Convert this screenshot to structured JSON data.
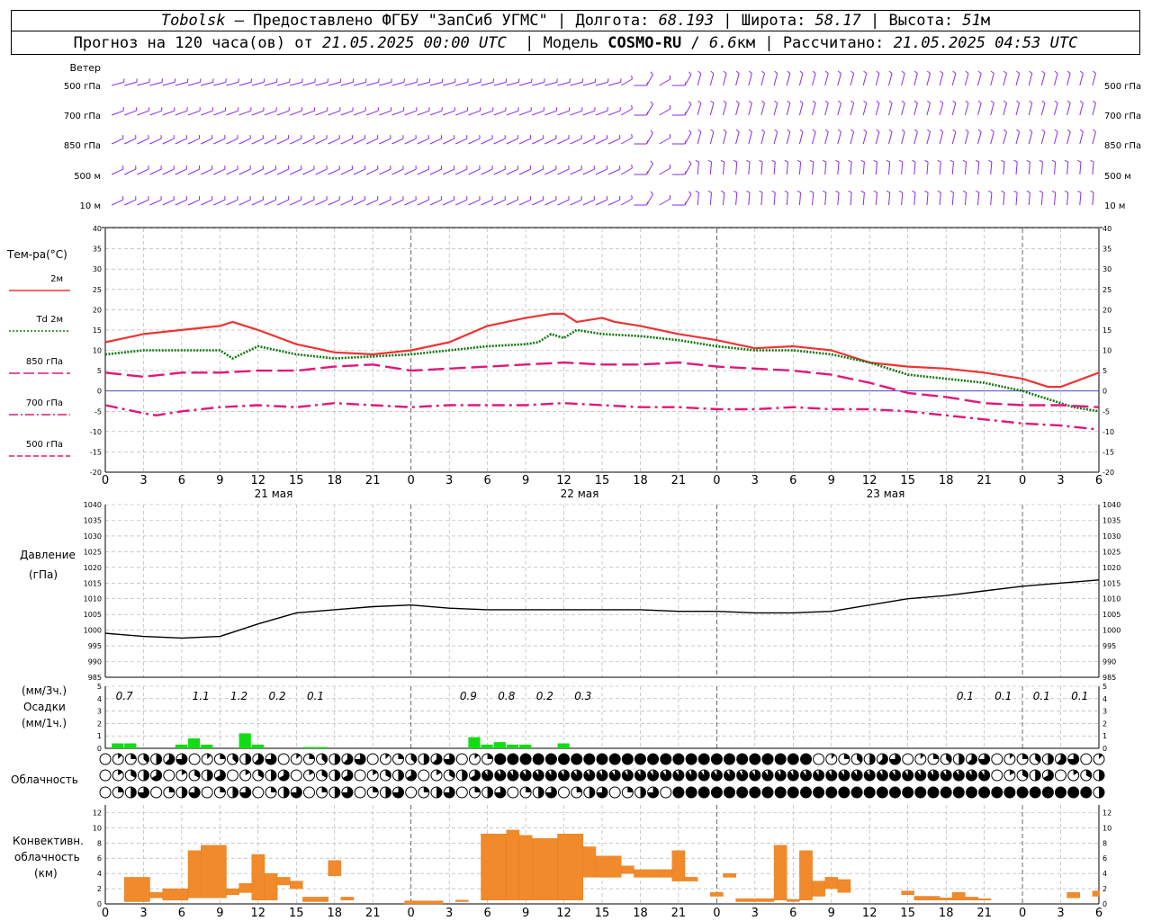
{
  "header": {
    "station": "Tobolsk",
    "dash": " — ",
    "provider": "Предоставлено ФГБУ \"ЗапСиб УГМС\"",
    "sep": " | ",
    "lon_label": "Долгота: ",
    "lon_value": "68.193",
    "lat_label": "Широта: ",
    "lat_value": "58.17",
    "alt_label": "Высота: ",
    "alt_value": "51",
    "alt_unit": "м"
  },
  "subheader": {
    "forecast_label": "Прогноз на 120 часа(ов) от ",
    "forecast_start": "21.05.2025 00:00 UTC",
    "model_label": "  | Модель ",
    "model_name": "COSMO-RU",
    "model_sep": " / ",
    "model_res": "6.6",
    "model_res_unit": "км",
    "calc_label": " | Рассчитано: ",
    "calc_time": "21.05.2025 04:53 UTC"
  },
  "panels": {
    "wind": {
      "title": "Ветер",
      "levels": [
        "500 гПа",
        "700 гПа",
        "850 гПа",
        "500 м",
        "10 м"
      ],
      "barb_color": "#8a2be2"
    },
    "temperature": {
      "title": "Тем-ра(°C)",
      "legend": [
        {
          "label": "2м",
          "color": "#ee3333",
          "style": "solid"
        },
        {
          "label": "Td 2м",
          "color": "#117711",
          "style": "dotted"
        },
        {
          "label": "850 гПа",
          "color": "#e0187a",
          "style": "dashed"
        },
        {
          "label": "700 гПа",
          "color": "#e0187a",
          "style": "dashdot"
        },
        {
          "label": "500 гПа",
          "color": "#e0187a",
          "style": "dashed"
        }
      ],
      "y_ticks": [
        "40",
        "35",
        "30",
        "25",
        "20",
        "15",
        "10",
        "5",
        "0",
        "-5",
        "-10",
        "-15",
        "-20"
      ]
    },
    "pressure": {
      "title_1": "Давление",
      "title_2": "(гПа)",
      "y_ticks": [
        "1040",
        "1035",
        "1030",
        "1025",
        "1020",
        "1015",
        "1010",
        "1005",
        "1000",
        "995",
        "990",
        "985"
      ]
    },
    "precip": {
      "title_1": "(мм/3ч.)",
      "title_2": "Осадки",
      "title_3": "(мм/1ч.)",
      "y_ticks": [
        "5",
        "4",
        "3",
        "2",
        "1",
        "0"
      ],
      "y_ticks_lower": [
        "4",
        "3",
        "2",
        "1",
        "0"
      ],
      "labels": [
        "0.7",
        "1.1",
        "1.2",
        "0.2",
        "0.1",
        "0.9",
        "0.8",
        "0.2",
        "0.3",
        "0.1",
        "0.1",
        "0.1",
        "0.1"
      ]
    },
    "cloud": {
      "title": "Облачность"
    },
    "convective": {
      "title_1": "Конвективн.",
      "title_2": "облачность",
      "title_3": "(км)",
      "y_ticks": [
        "12",
        "10",
        "8",
        "6",
        "4",
        "2",
        "0"
      ]
    }
  },
  "x_axis": {
    "hour_ticks": [
      "0",
      "3",
      "6",
      "9",
      "12",
      "15",
      "18",
      "21",
      "0",
      "3",
      "6",
      "9",
      "12",
      "15",
      "18",
      "21",
      "0",
      "3",
      "6",
      "9",
      "12",
      "15",
      "18",
      "21",
      "0",
      "3",
      "6"
    ],
    "dates": [
      "21 мая",
      "22 мая",
      "23 мая"
    ]
  },
  "chart_data": [
    {
      "type": "line",
      "title": "Тем-ра(°C)",
      "x_unit": "hours from 21.05.2025 00:00 UTC",
      "ylim": [
        -20,
        40
      ],
      "grid": true,
      "series": [
        {
          "name": "2м",
          "x": [
            0,
            3,
            6,
            9,
            10,
            12,
            15,
            18,
            21,
            24,
            27,
            30,
            33,
            35,
            36,
            37,
            39,
            40,
            42,
            45,
            48,
            51,
            54,
            57,
            60,
            63,
            66,
            69,
            72,
            74,
            75,
            78
          ],
          "values": [
            12,
            14,
            15,
            16,
            17,
            15,
            11.5,
            9.5,
            9,
            10,
            12,
            16,
            18,
            19,
            19,
            17,
            18,
            17,
            16,
            14,
            12.5,
            10.5,
            11,
            10,
            7,
            6,
            5.5,
            4.5,
            3,
            1,
            1,
            4.5
          ]
        },
        {
          "name": "Td 2м",
          "x": [
            0,
            3,
            6,
            9,
            10,
            12,
            15,
            18,
            21,
            24,
            27,
            30,
            33,
            34,
            35,
            36,
            37,
            39,
            42,
            45,
            48,
            51,
            54,
            57,
            60,
            63,
            66,
            69,
            72,
            74,
            76,
            78
          ],
          "values": [
            9,
            10,
            10,
            10,
            8,
            11,
            9,
            8,
            8.5,
            9,
            10,
            11,
            11.5,
            12,
            14,
            13,
            15,
            14,
            13.5,
            12.5,
            11,
            10,
            10,
            9,
            7,
            4,
            3,
            2,
            0,
            -2,
            -4,
            -5
          ]
        },
        {
          "name": "850 гПа",
          "x": [
            0,
            3,
            6,
            9,
            12,
            15,
            18,
            21,
            24,
            27,
            30,
            33,
            36,
            39,
            42,
            45,
            48,
            51,
            54,
            57,
            60,
            63,
            66,
            69,
            72,
            75,
            78
          ],
          "values": [
            4.5,
            3.5,
            4.5,
            4.5,
            5,
            5,
            6,
            6.5,
            5,
            5.5,
            6,
            6.5,
            7,
            6.5,
            6.5,
            7,
            6,
            5.5,
            5,
            4,
            2,
            -0.5,
            -1.5,
            -3,
            -3.5,
            -3.5,
            -4
          ]
        },
        {
          "name": "700 гПа",
          "x": [
            0,
            3,
            4,
            6,
            9,
            12,
            15,
            18,
            21,
            24,
            27,
            30,
            33,
            36,
            39,
            42,
            45,
            48,
            51,
            54,
            57,
            60,
            63,
            66,
            69,
            72,
            75,
            78
          ],
          "values": [
            -3.5,
            -5.5,
            -6,
            -5,
            -4,
            -3.5,
            -4,
            -3,
            -3.5,
            -4,
            -3.5,
            -3.5,
            -3.5,
            -3,
            -3.5,
            -4,
            -4,
            -4.5,
            -4.5,
            -4,
            -4.5,
            -4.5,
            -5,
            -6,
            -7,
            -8,
            -8.5,
            -9.5
          ]
        }
      ]
    },
    {
      "type": "line",
      "title": "Давление (гПа)",
      "x_unit": "hours from 21.05.2025 00:00 UTC",
      "ylim": [
        985,
        1040
      ],
      "grid": true,
      "series": [
        {
          "name": "Давление",
          "x": [
            0,
            3,
            6,
            9,
            12,
            15,
            18,
            21,
            24,
            27,
            30,
            33,
            36,
            39,
            42,
            45,
            48,
            51,
            54,
            57,
            60,
            63,
            66,
            69,
            72,
            75,
            78
          ],
          "values": [
            999,
            998,
            997.5,
            998,
            1002,
            1005.5,
            1006.5,
            1007.5,
            1008,
            1007,
            1006.5,
            1006.5,
            1006.5,
            1006.5,
            1006.5,
            1006,
            1006,
            1005.5,
            1005.5,
            1006,
            1008,
            1010,
            1011,
            1012.5,
            1014,
            1015,
            1016
          ]
        }
      ]
    },
    {
      "type": "bar",
      "title": "Осадки",
      "x_unit": "hours from 21.05.2025 00:00 UTC",
      "ylim": [
        0,
        5
      ],
      "series": [
        {
          "name": "мм/1ч.",
          "x": [
            1,
            2,
            6,
            7,
            8,
            11,
            12,
            16,
            17,
            29,
            30,
            31,
            32,
            33,
            36
          ],
          "values": [
            0.4,
            0.4,
            0.3,
            0.8,
            0.3,
            1.2,
            0.3,
            0.1,
            0.1,
            0.9,
            0.3,
            0.5,
            0.3,
            0.3,
            0.4
          ]
        }
      ],
      "totals_3h": [
        {
          "x": 1.5,
          "value": "0.7"
        },
        {
          "x": 7.5,
          "value": "1.1"
        },
        {
          "x": 10.5,
          "value": "1.2"
        },
        {
          "x": 13.5,
          "value": "0.2"
        },
        {
          "x": 16.5,
          "value": "0.1"
        },
        {
          "x": 28.5,
          "value": "0.9"
        },
        {
          "x": 31.5,
          "value": "0.8"
        },
        {
          "x": 34.5,
          "value": "0.2"
        },
        {
          "x": 37.5,
          "value": "0.3"
        },
        {
          "x": 67.5,
          "value": "0.1"
        },
        {
          "x": 70.5,
          "value": "0.1"
        },
        {
          "x": 73.5,
          "value": "0.1"
        },
        {
          "x": 76.5,
          "value": "0.1"
        }
      ]
    },
    {
      "type": "bar",
      "title": "Конвективн. облачность (км)",
      "x_unit": "hours from 21.05.2025 00:00 UTC",
      "ylim": [
        0,
        13
      ],
      "bars": [
        {
          "x0": 1.5,
          "x1": 3.5,
          "base": 0.3,
          "top": 3.5
        },
        {
          "x0": 3.5,
          "x1": 4.5,
          "base": 0.8,
          "top": 1.5
        },
        {
          "x0": 4.5,
          "x1": 6.5,
          "base": 0.5,
          "top": 2
        },
        {
          "x0": 6.5,
          "x1": 7.5,
          "base": 0.8,
          "top": 7
        },
        {
          "x0": 7.5,
          "x1": 9.5,
          "base": 0.8,
          "top": 7.7
        },
        {
          "x0": 9.5,
          "x1": 10.5,
          "base": 1.2,
          "top": 2
        },
        {
          "x0": 10.5,
          "x1": 11.5,
          "base": 1.5,
          "top": 2.7
        },
        {
          "x0": 11.5,
          "x1": 12.5,
          "base": 0.5,
          "top": 6.5
        },
        {
          "x0": 12.5,
          "x1": 13.5,
          "base": 0.5,
          "top": 4
        },
        {
          "x0": 13.5,
          "x1": 14.5,
          "base": 2.5,
          "top": 3.5
        },
        {
          "x0": 14.5,
          "x1": 15.5,
          "base": 2,
          "top": 3
        },
        {
          "x0": 15.5,
          "x1": 17.5,
          "base": 0.3,
          "top": 0.9
        },
        {
          "x0": 17.5,
          "x1": 18.5,
          "base": 3.7,
          "top": 5.7
        },
        {
          "x0": 18.5,
          "x1": 19.5,
          "base": 0.5,
          "top": 0.9
        },
        {
          "x0": 23.5,
          "x1": 26.5,
          "base": 0,
          "top": 0.4
        },
        {
          "x0": 27.5,
          "x1": 28.5,
          "base": 0.3,
          "top": 0.5
        },
        {
          "x0": 29.5,
          "x1": 31.5,
          "base": 0.5,
          "top": 9.2
        },
        {
          "x0": 31.5,
          "x1": 32.5,
          "base": 0.5,
          "top": 9.7
        },
        {
          "x0": 32.5,
          "x1": 33.5,
          "base": 0.5,
          "top": 9
        },
        {
          "x0": 33.5,
          "x1": 35.5,
          "base": 0.5,
          "top": 8.6
        },
        {
          "x0": 35.5,
          "x1": 37.5,
          "base": 0.5,
          "top": 9.2
        },
        {
          "x0": 37.5,
          "x1": 38.5,
          "base": 3.5,
          "top": 7.5
        },
        {
          "x0": 38.5,
          "x1": 40.5,
          "base": 3.5,
          "top": 6.3
        },
        {
          "x0": 40.5,
          "x1": 41.5,
          "base": 4,
          "top": 5
        },
        {
          "x0": 41.5,
          "x1": 43.5,
          "base": 3.5,
          "top": 4.5
        },
        {
          "x0": 43.5,
          "x1": 44.5,
          "base": 3.5,
          "top": 4.5
        },
        {
          "x0": 44.5,
          "x1": 45.5,
          "base": 3,
          "top": 7
        },
        {
          "x0": 45.5,
          "x1": 46.5,
          "base": 3,
          "top": 3.5
        },
        {
          "x0": 47.5,
          "x1": 48.5,
          "base": 1,
          "top": 1.5
        },
        {
          "x0": 48.5,
          "x1": 49.5,
          "base": 3.5,
          "top": 4
        },
        {
          "x0": 49.5,
          "x1": 52.5,
          "base": 0.3,
          "top": 0.7
        },
        {
          "x0": 52.5,
          "x1": 53.5,
          "base": 0.5,
          "top": 7.7
        },
        {
          "x0": 53.5,
          "x1": 54.5,
          "base": 0.3,
          "top": 0.6
        },
        {
          "x0": 54.5,
          "x1": 55.5,
          "base": 0.5,
          "top": 7
        },
        {
          "x0": 55.5,
          "x1": 56.5,
          "base": 1,
          "top": 3
        },
        {
          "x0": 56.5,
          "x1": 57.5,
          "base": 2,
          "top": 3.5
        },
        {
          "x0": 57.5,
          "x1": 58.5,
          "base": 1.5,
          "top": 3.2
        },
        {
          "x0": 62.5,
          "x1": 63.5,
          "base": 1.2,
          "top": 1.7
        },
        {
          "x0": 63.5,
          "x1": 65.5,
          "base": 0.5,
          "top": 1
        },
        {
          "x0": 65.5,
          "x1": 66.5,
          "base": 0.5,
          "top": 0.8
        },
        {
          "x0": 66.5,
          "x1": 67.5,
          "base": 0.5,
          "top": 1.5
        },
        {
          "x0": 67.5,
          "x1": 68.5,
          "base": 0.5,
          "top": 0.9
        },
        {
          "x0": 68.5,
          "x1": 69.5,
          "base": 0.5,
          "top": 0.7
        },
        {
          "x0": 75.5,
          "x1": 76.5,
          "base": 0.8,
          "top": 1.5
        },
        {
          "x0": 77.5,
          "x1": 78,
          "base": 1,
          "top": 1.7
        }
      ]
    }
  ]
}
